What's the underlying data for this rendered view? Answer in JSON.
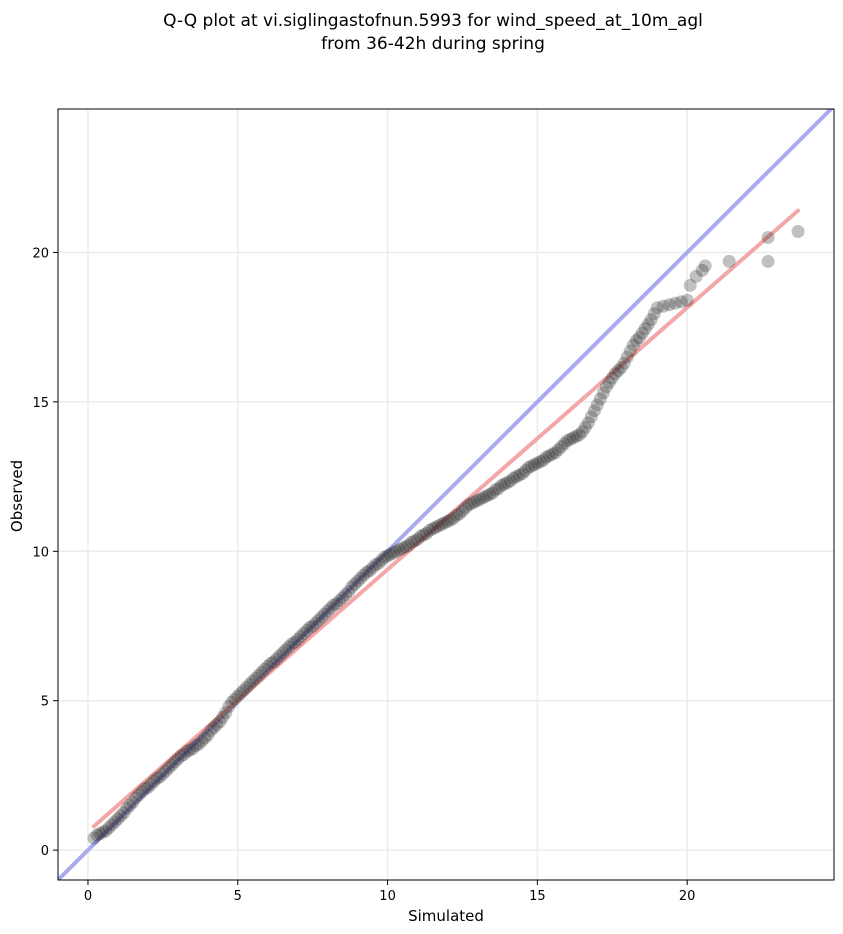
{
  "chart_data": {
    "type": "scatter",
    "title_lines": [
      "Q-Q plot at vi.siglingastofnun.5993 for wind_speed_at_10m_agl",
      "from 36-42h during spring"
    ],
    "xlabel": "Simulated",
    "ylabel": "Observed",
    "xlim": [
      -1.0,
      24.9
    ],
    "ylim": [
      -1.0,
      24.8
    ],
    "xticks": [
      0,
      5,
      10,
      15,
      20
    ],
    "yticks": [
      0,
      5,
      10,
      15,
      20
    ],
    "grid": true,
    "reference_line": {
      "name": "1:1 line",
      "color": "#aaaaf0",
      "from": [
        -1.0,
        -1.0
      ],
      "to": [
        24.9,
        24.9
      ]
    },
    "fit_line": {
      "name": "fit",
      "color": "#f5a6a6",
      "from": [
        0.2,
        0.8
      ],
      "to": [
        23.7,
        21.4
      ]
    },
    "marker_color": "#222222",
    "points": [
      [
        0.2,
        0.4
      ],
      [
        0.3,
        0.5
      ],
      [
        0.4,
        0.55
      ],
      [
        0.5,
        0.6
      ],
      [
        0.6,
        0.65
      ],
      [
        0.7,
        0.75
      ],
      [
        0.8,
        0.85
      ],
      [
        0.9,
        0.95
      ],
      [
        1.0,
        1.05
      ],
      [
        1.1,
        1.15
      ],
      [
        1.2,
        1.25
      ],
      [
        1.3,
        1.4
      ],
      [
        1.4,
        1.5
      ],
      [
        1.5,
        1.6
      ],
      [
        1.6,
        1.75
      ],
      [
        1.7,
        1.85
      ],
      [
        1.8,
        1.95
      ],
      [
        1.9,
        2.05
      ],
      [
        2.0,
        2.1
      ],
      [
        2.1,
        2.2
      ],
      [
        2.2,
        2.3
      ],
      [
        2.3,
        2.4
      ],
      [
        2.4,
        2.45
      ],
      [
        2.5,
        2.55
      ],
      [
        2.6,
        2.65
      ],
      [
        2.7,
        2.75
      ],
      [
        2.8,
        2.85
      ],
      [
        2.9,
        2.95
      ],
      [
        3.0,
        3.05
      ],
      [
        3.1,
        3.15
      ],
      [
        3.2,
        3.2
      ],
      [
        3.3,
        3.3
      ],
      [
        3.4,
        3.35
      ],
      [
        3.5,
        3.4
      ],
      [
        3.6,
        3.5
      ],
      [
        3.7,
        3.55
      ],
      [
        3.8,
        3.65
      ],
      [
        3.9,
        3.75
      ],
      [
        4.0,
        3.85
      ],
      [
        4.1,
        4.0
      ],
      [
        4.2,
        4.1
      ],
      [
        4.3,
        4.2
      ],
      [
        4.4,
        4.3
      ],
      [
        4.5,
        4.45
      ],
      [
        4.6,
        4.6
      ],
      [
        4.7,
        4.8
      ],
      [
        4.8,
        4.95
      ],
      [
        4.9,
        5.05
      ],
      [
        5.0,
        5.15
      ],
      [
        5.1,
        5.25
      ],
      [
        5.2,
        5.35
      ],
      [
        5.3,
        5.45
      ],
      [
        5.4,
        5.55
      ],
      [
        5.5,
        5.65
      ],
      [
        5.6,
        5.75
      ],
      [
        5.7,
        5.85
      ],
      [
        5.8,
        5.95
      ],
      [
        5.9,
        6.05
      ],
      [
        6.0,
        6.15
      ],
      [
        6.1,
        6.25
      ],
      [
        6.2,
        6.3
      ],
      [
        6.3,
        6.4
      ],
      [
        6.4,
        6.5
      ],
      [
        6.5,
        6.6
      ],
      [
        6.6,
        6.7
      ],
      [
        6.7,
        6.8
      ],
      [
        6.8,
        6.9
      ],
      [
        6.9,
        6.95
      ],
      [
        7.0,
        7.05
      ],
      [
        7.1,
        7.15
      ],
      [
        7.2,
        7.25
      ],
      [
        7.3,
        7.35
      ],
      [
        7.4,
        7.45
      ],
      [
        7.5,
        7.5
      ],
      [
        7.6,
        7.6
      ],
      [
        7.7,
        7.7
      ],
      [
        7.8,
        7.8
      ],
      [
        7.9,
        7.9
      ],
      [
        8.0,
        8.0
      ],
      [
        8.1,
        8.1
      ],
      [
        8.2,
        8.2
      ],
      [
        8.3,
        8.25
      ],
      [
        8.4,
        8.35
      ],
      [
        8.5,
        8.45
      ],
      [
        8.6,
        8.55
      ],
      [
        8.7,
        8.65
      ],
      [
        8.8,
        8.8
      ],
      [
        8.9,
        8.9
      ],
      [
        9.0,
        9.0
      ],
      [
        9.1,
        9.1
      ],
      [
        9.2,
        9.2
      ],
      [
        9.3,
        9.3
      ],
      [
        9.4,
        9.35
      ],
      [
        9.5,
        9.45
      ],
      [
        9.6,
        9.55
      ],
      [
        9.7,
        9.6
      ],
      [
        9.8,
        9.7
      ],
      [
        9.9,
        9.8
      ],
      [
        10.0,
        9.85
      ],
      [
        10.1,
        9.9
      ],
      [
        10.2,
        9.95
      ],
      [
        10.3,
        10.0
      ],
      [
        10.4,
        10.05
      ],
      [
        10.5,
        10.1
      ],
      [
        10.6,
        10.15
      ],
      [
        10.7,
        10.2
      ],
      [
        10.8,
        10.3
      ],
      [
        10.9,
        10.35
      ],
      [
        11.0,
        10.4
      ],
      [
        11.1,
        10.5
      ],
      [
        11.2,
        10.55
      ],
      [
        11.3,
        10.6
      ],
      [
        11.4,
        10.7
      ],
      [
        11.5,
        10.75
      ],
      [
        11.6,
        10.8
      ],
      [
        11.7,
        10.85
      ],
      [
        11.8,
        10.9
      ],
      [
        11.9,
        10.95
      ],
      [
        12.0,
        11.0
      ],
      [
        12.1,
        11.05
      ],
      [
        12.2,
        11.1
      ],
      [
        12.3,
        11.2
      ],
      [
        12.4,
        11.25
      ],
      [
        12.5,
        11.35
      ],
      [
        12.6,
        11.45
      ],
      [
        12.7,
        11.55
      ],
      [
        12.8,
        11.6
      ],
      [
        12.9,
        11.65
      ],
      [
        13.0,
        11.7
      ],
      [
        13.1,
        11.75
      ],
      [
        13.2,
        11.8
      ],
      [
        13.3,
        11.85
      ],
      [
        13.4,
        11.9
      ],
      [
        13.5,
        11.95
      ],
      [
        13.6,
        12.05
      ],
      [
        13.7,
        12.1
      ],
      [
        13.8,
        12.2
      ],
      [
        13.9,
        12.25
      ],
      [
        14.0,
        12.3
      ],
      [
        14.1,
        12.35
      ],
      [
        14.2,
        12.45
      ],
      [
        14.3,
        12.5
      ],
      [
        14.4,
        12.55
      ],
      [
        14.5,
        12.6
      ],
      [
        14.6,
        12.7
      ],
      [
        14.7,
        12.8
      ],
      [
        14.8,
        12.85
      ],
      [
        14.9,
        12.9
      ],
      [
        15.0,
        12.95
      ],
      [
        15.1,
        13.0
      ],
      [
        15.2,
        13.05
      ],
      [
        15.3,
        13.15
      ],
      [
        15.4,
        13.2
      ],
      [
        15.5,
        13.25
      ],
      [
        15.6,
        13.3
      ],
      [
        15.7,
        13.4
      ],
      [
        15.8,
        13.5
      ],
      [
        15.9,
        13.6
      ],
      [
        16.0,
        13.7
      ],
      [
        16.1,
        13.75
      ],
      [
        16.2,
        13.8
      ],
      [
        16.3,
        13.85
      ],
      [
        16.4,
        13.9
      ],
      [
        16.5,
        14.0
      ],
      [
        16.6,
        14.15
      ],
      [
        16.7,
        14.3
      ],
      [
        16.8,
        14.5
      ],
      [
        16.9,
        14.7
      ],
      [
        17.0,
        14.9
      ],
      [
        17.1,
        15.1
      ],
      [
        17.2,
        15.3
      ],
      [
        17.3,
        15.5
      ],
      [
        17.4,
        15.65
      ],
      [
        17.5,
        15.8
      ],
      [
        17.6,
        15.95
      ],
      [
        17.7,
        16.05
      ],
      [
        17.8,
        16.15
      ],
      [
        17.9,
        16.3
      ],
      [
        18.0,
        16.5
      ],
      [
        18.1,
        16.7
      ],
      [
        18.2,
        16.9
      ],
      [
        18.3,
        17.05
      ],
      [
        18.4,
        17.15
      ],
      [
        18.5,
        17.3
      ],
      [
        18.6,
        17.45
      ],
      [
        18.7,
        17.6
      ],
      [
        18.8,
        17.75
      ],
      [
        18.9,
        17.95
      ],
      [
        19.0,
        18.15
      ],
      [
        19.2,
        18.2
      ],
      [
        19.4,
        18.25
      ],
      [
        19.6,
        18.3
      ],
      [
        19.8,
        18.35
      ],
      [
        20.0,
        18.4
      ],
      [
        20.1,
        18.9
      ],
      [
        20.3,
        19.2
      ],
      [
        20.5,
        19.4
      ],
      [
        20.6,
        19.55
      ],
      [
        21.4,
        19.7
      ],
      [
        22.7,
        19.7
      ],
      [
        22.7,
        20.5
      ],
      [
        23.7,
        20.7
      ]
    ]
  }
}
